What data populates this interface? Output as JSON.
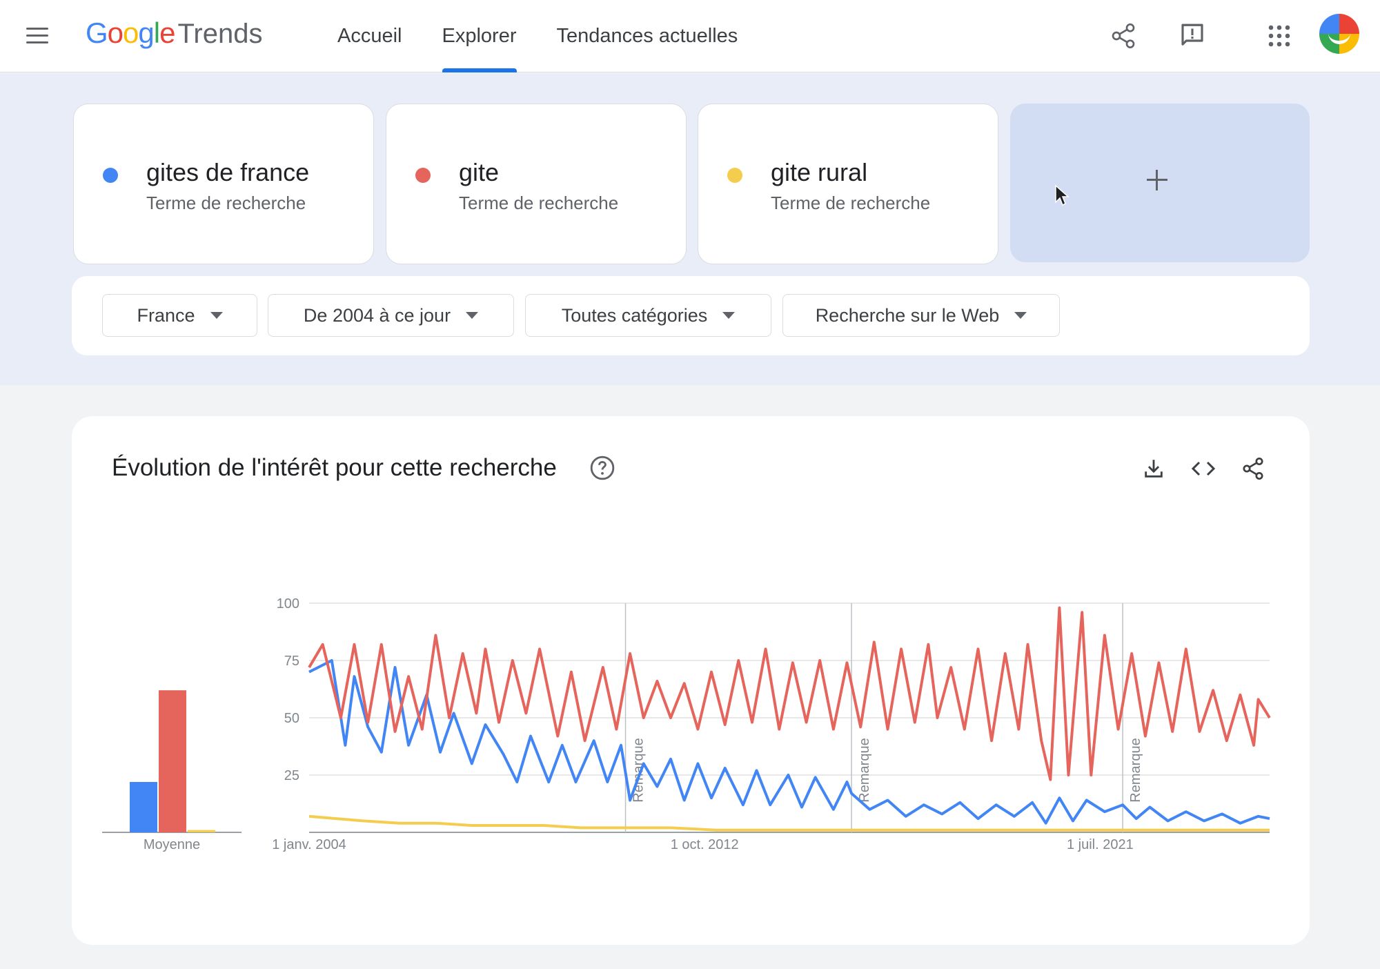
{
  "header": {
    "logo_google": "Google",
    "logo_trends": "Trends",
    "tabs": [
      "Accueil",
      "Explorer",
      "Tendances actuelles"
    ],
    "active_tab": "Explorer",
    "icons": [
      "share-icon",
      "feedback-icon",
      "apps-icon",
      "avatar"
    ]
  },
  "terms": [
    {
      "name": "gites de france",
      "sub": "Terme de recherche",
      "color": "#4285f4"
    },
    {
      "name": "gite",
      "sub": "Terme de recherche",
      "color": "#e5645c"
    },
    {
      "name": "gite rural",
      "sub": "Terme de recherche",
      "color": "#f4cd4f"
    }
  ],
  "add_term": "+",
  "filters": {
    "region": "France",
    "period": "De 2004 à ce jour",
    "category": "Toutes catégories",
    "search_type": "Recherche sur le Web"
  },
  "chart_card": {
    "title": "Évolution de l'intérêt pour cette recherche",
    "icons": [
      "help-icon",
      "download-icon",
      "embed-icon",
      "share-icon"
    ]
  },
  "chart_data": {
    "type": "line",
    "y_ticks": [
      "100",
      "75",
      "50",
      "25"
    ],
    "ylim": [
      0,
      100
    ],
    "x_tick_labels": [
      "1 janv. 2004",
      "1 oct. 2012",
      "1 juil. 2021"
    ],
    "x_tick_years": [
      2004.0,
      2012.75,
      2021.5
    ],
    "xlim": [
      2004.0,
      2025.25
    ],
    "notes": [
      {
        "label": "Remarque",
        "year": 2011.0
      },
      {
        "label": "Remarque",
        "year": 2016.0
      },
      {
        "label": "Remarque",
        "year": 2022.0
      }
    ],
    "average_label": "Moyenne",
    "averages": [
      22,
      62,
      1
    ],
    "grid": true,
    "series": [
      {
        "name": "gites de france",
        "color": "#4285f4",
        "points": [
          [
            2004.0,
            70
          ],
          [
            2004.5,
            75
          ],
          [
            2004.8,
            38
          ],
          [
            2005.0,
            68
          ],
          [
            2005.3,
            46
          ],
          [
            2005.6,
            35
          ],
          [
            2005.9,
            72
          ],
          [
            2006.2,
            38
          ],
          [
            2006.6,
            60
          ],
          [
            2006.9,
            35
          ],
          [
            2007.2,
            52
          ],
          [
            2007.6,
            30
          ],
          [
            2007.9,
            47
          ],
          [
            2008.3,
            34
          ],
          [
            2008.6,
            22
          ],
          [
            2008.9,
            42
          ],
          [
            2009.3,
            22
          ],
          [
            2009.6,
            38
          ],
          [
            2009.9,
            22
          ],
          [
            2010.3,
            40
          ],
          [
            2010.6,
            22
          ],
          [
            2010.9,
            38
          ],
          [
            2011.1,
            14
          ],
          [
            2011.4,
            30
          ],
          [
            2011.7,
            20
          ],
          [
            2012.0,
            32
          ],
          [
            2012.3,
            14
          ],
          [
            2012.6,
            30
          ],
          [
            2012.9,
            15
          ],
          [
            2013.2,
            28
          ],
          [
            2013.6,
            12
          ],
          [
            2013.9,
            27
          ],
          [
            2014.2,
            12
          ],
          [
            2014.6,
            25
          ],
          [
            2014.9,
            11
          ],
          [
            2015.2,
            24
          ],
          [
            2015.6,
            10
          ],
          [
            2015.9,
            22
          ],
          [
            2016.0,
            17
          ],
          [
            2016.4,
            10
          ],
          [
            2016.8,
            14
          ],
          [
            2017.2,
            7
          ],
          [
            2017.6,
            12
          ],
          [
            2018.0,
            8
          ],
          [
            2018.4,
            13
          ],
          [
            2018.8,
            6
          ],
          [
            2019.2,
            12
          ],
          [
            2019.6,
            7
          ],
          [
            2020.0,
            13
          ],
          [
            2020.3,
            4
          ],
          [
            2020.6,
            15
          ],
          [
            2020.9,
            5
          ],
          [
            2021.2,
            14
          ],
          [
            2021.6,
            9
          ],
          [
            2022.0,
            12
          ],
          [
            2022.3,
            6
          ],
          [
            2022.6,
            11
          ],
          [
            2023.0,
            5
          ],
          [
            2023.4,
            9
          ],
          [
            2023.8,
            5
          ],
          [
            2024.2,
            8
          ],
          [
            2024.6,
            4
          ],
          [
            2025.0,
            7
          ],
          [
            2025.25,
            6
          ]
        ]
      },
      {
        "name": "gite",
        "color": "#e5645c",
        "points": [
          [
            2004.0,
            72
          ],
          [
            2004.3,
            82
          ],
          [
            2004.7,
            50
          ],
          [
            2005.0,
            82
          ],
          [
            2005.3,
            48
          ],
          [
            2005.6,
            82
          ],
          [
            2005.9,
            44
          ],
          [
            2006.2,
            68
          ],
          [
            2006.5,
            45
          ],
          [
            2006.8,
            86
          ],
          [
            2007.1,
            50
          ],
          [
            2007.4,
            78
          ],
          [
            2007.7,
            52
          ],
          [
            2007.9,
            80
          ],
          [
            2008.2,
            48
          ],
          [
            2008.5,
            75
          ],
          [
            2008.8,
            52
          ],
          [
            2009.1,
            80
          ],
          [
            2009.5,
            42
          ],
          [
            2009.8,
            70
          ],
          [
            2010.1,
            40
          ],
          [
            2010.5,
            72
          ],
          [
            2010.8,
            45
          ],
          [
            2011.1,
            78
          ],
          [
            2011.4,
            50
          ],
          [
            2011.7,
            66
          ],
          [
            2012.0,
            50
          ],
          [
            2012.3,
            65
          ],
          [
            2012.6,
            45
          ],
          [
            2012.9,
            70
          ],
          [
            2013.2,
            47
          ],
          [
            2013.5,
            75
          ],
          [
            2013.8,
            48
          ],
          [
            2014.1,
            80
          ],
          [
            2014.4,
            45
          ],
          [
            2014.7,
            74
          ],
          [
            2015.0,
            48
          ],
          [
            2015.3,
            75
          ],
          [
            2015.6,
            45
          ],
          [
            2015.9,
            74
          ],
          [
            2016.2,
            46
          ],
          [
            2016.5,
            83
          ],
          [
            2016.8,
            45
          ],
          [
            2017.1,
            80
          ],
          [
            2017.4,
            48
          ],
          [
            2017.7,
            82
          ],
          [
            2017.9,
            50
          ],
          [
            2018.2,
            72
          ],
          [
            2018.5,
            45
          ],
          [
            2018.8,
            80
          ],
          [
            2019.1,
            40
          ],
          [
            2019.4,
            78
          ],
          [
            2019.7,
            45
          ],
          [
            2019.9,
            82
          ],
          [
            2020.2,
            40
          ],
          [
            2020.4,
            23
          ],
          [
            2020.6,
            98
          ],
          [
            2020.8,
            25
          ],
          [
            2021.1,
            96
          ],
          [
            2021.3,
            25
          ],
          [
            2021.6,
            86
          ],
          [
            2021.9,
            45
          ],
          [
            2022.2,
            78
          ],
          [
            2022.5,
            42
          ],
          [
            2022.8,
            74
          ],
          [
            2023.1,
            44
          ],
          [
            2023.4,
            80
          ],
          [
            2023.7,
            44
          ],
          [
            2024.0,
            62
          ],
          [
            2024.3,
            40
          ],
          [
            2024.6,
            60
          ],
          [
            2024.9,
            38
          ],
          [
            2025.0,
            58
          ],
          [
            2025.25,
            50
          ]
        ]
      },
      {
        "name": "gite rural",
        "color": "#f4cd4f",
        "points": [
          [
            2004.0,
            7
          ],
          [
            2004.6,
            6
          ],
          [
            2005.2,
            5
          ],
          [
            2006.0,
            4
          ],
          [
            2006.8,
            4
          ],
          [
            2007.6,
            3
          ],
          [
            2008.4,
            3
          ],
          [
            2009.2,
            3
          ],
          [
            2010.0,
            2
          ],
          [
            2011.0,
            2
          ],
          [
            2012.0,
            2
          ],
          [
            2013.0,
            1
          ],
          [
            2014.0,
            1
          ],
          [
            2015.0,
            1
          ],
          [
            2016.0,
            1
          ],
          [
            2017.0,
            1
          ],
          [
            2018.0,
            1
          ],
          [
            2019.0,
            1
          ],
          [
            2020.0,
            1
          ],
          [
            2021.0,
            1
          ],
          [
            2022.0,
            1
          ],
          [
            2023.0,
            1
          ],
          [
            2024.0,
            1
          ],
          [
            2025.25,
            1
          ]
        ]
      }
    ]
  }
}
